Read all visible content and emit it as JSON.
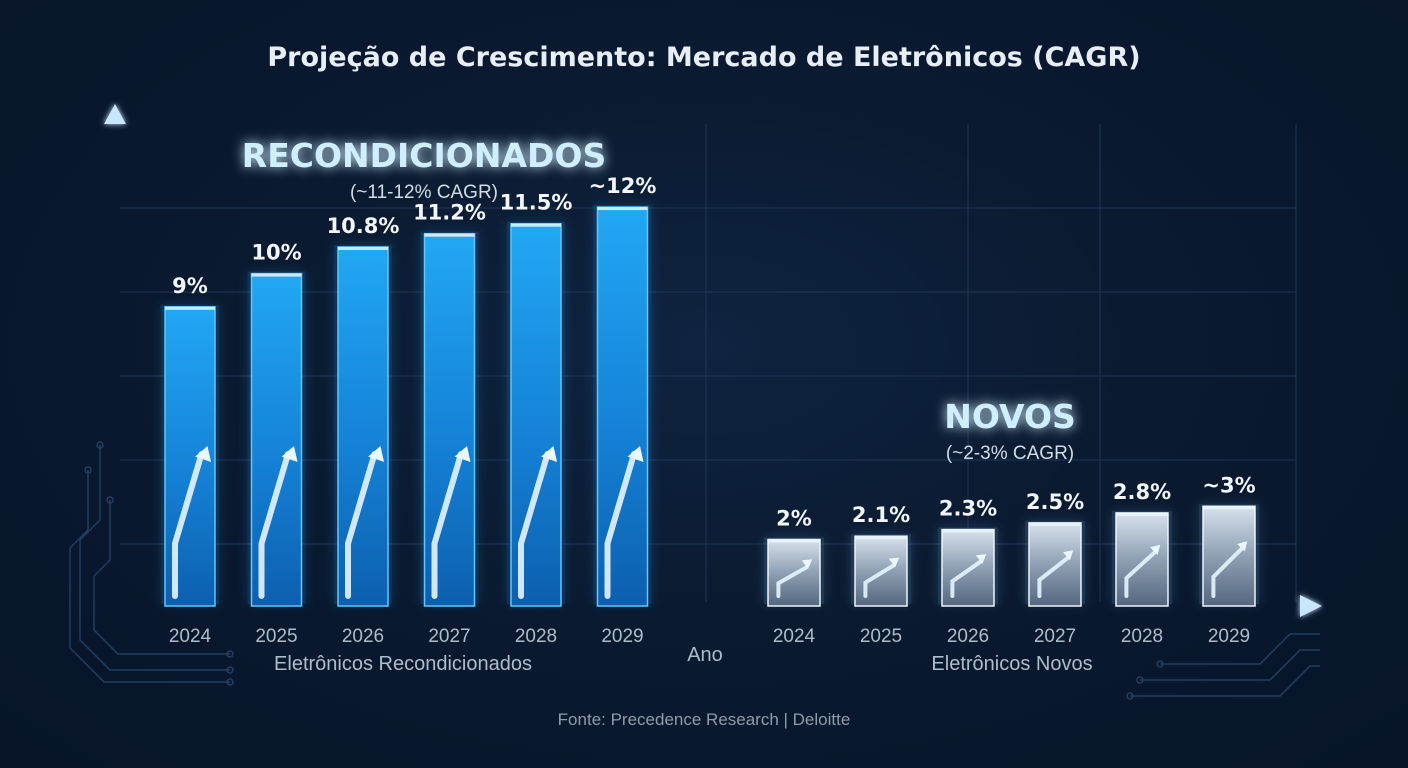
{
  "chart_data": [
    {
      "type": "bar",
      "title": "Projeção de Crescimento: Mercado de Eletrônicos (CAGR)",
      "group_title": "RECONDICIONADOS",
      "group_subtitle": "(~11-12% CAGR)",
      "xlabel": "Eletrônicos Recondicionados",
      "categories": [
        "2024",
        "2025",
        "2026",
        "2027",
        "2028",
        "2029"
      ],
      "values": [
        9,
        10,
        10.8,
        11.2,
        11.5,
        12
      ],
      "labels": [
        "9%",
        "10%",
        "10.8%",
        "11.2%",
        "11.5%",
        "~12%"
      ],
      "ylim": [
        0,
        14.5
      ],
      "color": "#1e9be8"
    },
    {
      "type": "bar",
      "group_title": "NOVOS",
      "group_subtitle": "(~2-3% CAGR)",
      "xlabel": "Eletrônicos Novos",
      "categories": [
        "2024",
        "2025",
        "2026",
        "2027",
        "2028",
        "2029"
      ],
      "values": [
        2,
        2.1,
        2.3,
        2.5,
        2.8,
        3
      ],
      "labels": [
        "2%",
        "2.1%",
        "2.3%",
        "2.5%",
        "2.8%",
        "~3%"
      ],
      "ylim": [
        0,
        14.5
      ],
      "color": "#b9c6d6"
    }
  ],
  "shared_axis_label": "Ano",
  "source": "Fonte: Precedence Research | Deloitte",
  "grid": true
}
